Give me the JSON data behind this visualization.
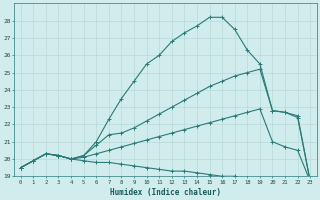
{
  "xlabel": "Humidex (Indice chaleur)",
  "x_values": [
    0,
    1,
    2,
    3,
    4,
    5,
    6,
    7,
    8,
    9,
    10,
    11,
    12,
    13,
    14,
    15,
    16,
    17,
    18,
    19,
    20,
    21,
    22,
    23
  ],
  "line1": [
    19.5,
    19.9,
    20.3,
    20.2,
    20.0,
    19.9,
    19.8,
    19.8,
    19.7,
    19.6,
    19.5,
    19.4,
    19.3,
    19.3,
    19.2,
    19.1,
    19.0,
    19.0,
    18.9,
    18.8,
    18.8,
    18.8,
    18.85,
    18.7
  ],
  "line2": [
    19.5,
    19.9,
    20.3,
    20.2,
    20.0,
    20.1,
    20.3,
    20.5,
    20.7,
    20.9,
    21.1,
    21.3,
    21.5,
    21.7,
    21.9,
    22.1,
    22.3,
    22.5,
    22.7,
    22.9,
    21.0,
    20.7,
    20.5,
    18.7
  ],
  "line3": [
    19.5,
    19.9,
    20.3,
    20.2,
    20.0,
    20.2,
    20.8,
    21.4,
    21.5,
    21.8,
    22.2,
    22.6,
    23.0,
    23.4,
    23.8,
    24.2,
    24.5,
    24.8,
    25.0,
    25.2,
    22.8,
    22.7,
    22.5,
    18.7
  ],
  "line4": [
    19.5,
    19.9,
    20.3,
    20.2,
    20.0,
    20.2,
    21.0,
    22.3,
    23.5,
    24.5,
    25.5,
    26.0,
    26.8,
    27.3,
    27.7,
    28.2,
    28.2,
    27.5,
    26.3,
    25.5,
    22.8,
    22.7,
    22.4,
    18.7
  ],
  "bg_color": "#d0ecec",
  "line_color": "#2a7a7a",
  "grid_color": "#b8d8d8",
  "ylim": [
    19,
    29
  ],
  "yticks": [
    19,
    20,
    21,
    22,
    23,
    24,
    25,
    26,
    27,
    28
  ]
}
